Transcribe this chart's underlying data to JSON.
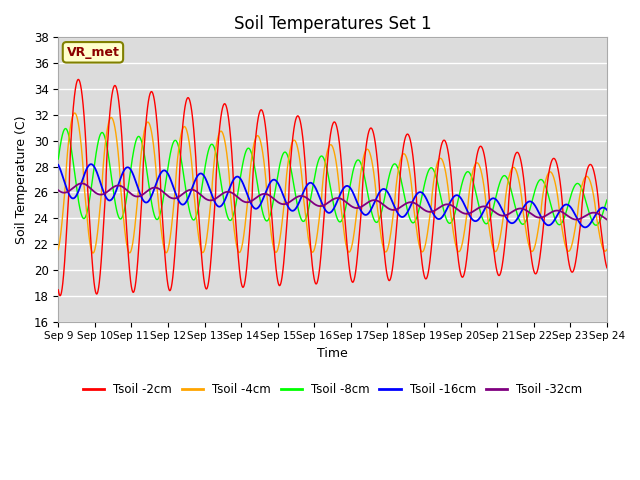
{
  "title": "Soil Temperatures Set 1",
  "xlabel": "Time",
  "ylabel": "Soil Temperature (C)",
  "ylim": [
    16,
    38
  ],
  "yticks": [
    16,
    18,
    20,
    22,
    24,
    26,
    28,
    30,
    32,
    34,
    36,
    38
  ],
  "x_labels": [
    "Sep 9",
    "Sep 10",
    "Sep 11",
    "Sep 12",
    "Sep 13",
    "Sep 14",
    "Sep 15",
    "Sep 16",
    "Sep 17",
    "Sep 18",
    "Sep 19",
    "Sep 20",
    "Sep 21",
    "Sep 22",
    "Sep 23",
    "Sep 24"
  ],
  "legend_labels": [
    "Tsoil -2cm",
    "Tsoil -4cm",
    "Tsoil -8cm",
    "Tsoil -16cm",
    "Tsoil -32cm"
  ],
  "colors": [
    "red",
    "orange",
    "lime",
    "blue",
    "purple"
  ],
  "annotation_text": "VR_met",
  "axes_facecolor": "#dcdcdc"
}
